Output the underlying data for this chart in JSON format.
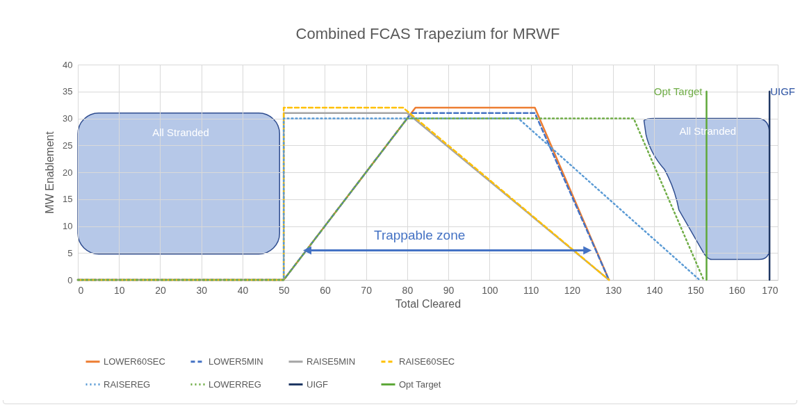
{
  "chart_data": {
    "type": "line",
    "title": "Combined FCAS Trapezium for MRWF",
    "xlabel": "Total Cleared",
    "ylabel": "MW Enablement",
    "xlim": [
      0,
      170
    ],
    "xticks": [
      0,
      10,
      20,
      30,
      40,
      50,
      60,
      70,
      80,
      90,
      100,
      110,
      120,
      130,
      140,
      150,
      160,
      170
    ],
    "ylim": [
      0,
      40
    ],
    "yticks": [
      0,
      5,
      10,
      15,
      20,
      25,
      30,
      35,
      40
    ],
    "grid": true,
    "legend": "bottom",
    "series": [
      {
        "name": "LOWER60SEC",
        "color": "#ed7d31",
        "line_style": "solid",
        "x": [
          0,
          50,
          82,
          111,
          129
        ],
        "values": [
          0,
          0,
          32,
          32,
          0
        ]
      },
      {
        "name": "LOWER5MIN",
        "color": "#4472c4",
        "line_style": "dashed",
        "x": [
          0,
          50,
          81,
          111,
          129
        ],
        "values": [
          0,
          0,
          31,
          31,
          0
        ]
      },
      {
        "name": "RAISE5MIN",
        "color": "#a5a5a5",
        "line_style": "solid",
        "x": [
          0,
          50,
          50,
          80,
          129
        ],
        "values": [
          0,
          0,
          31,
          31,
          0
        ]
      },
      {
        "name": "RAISE60SEC",
        "color": "#ffc000",
        "line_style": "dashed",
        "x": [
          0,
          50,
          50,
          79,
          129
        ],
        "values": [
          0,
          0,
          32,
          32,
          0
        ]
      },
      {
        "name": "RAISEREG",
        "color": "#5b9bd5",
        "line_style": "dotted",
        "x": [
          0,
          50,
          50,
          107,
          151
        ],
        "values": [
          0,
          0,
          30,
          30,
          0
        ]
      },
      {
        "name": "LOWERREG",
        "color": "#70ad47",
        "line_style": "dotted",
        "x": [
          0,
          50,
          80,
          135,
          152
        ],
        "values": [
          0,
          0,
          30,
          30,
          0
        ]
      },
      {
        "name": "UIGF",
        "color": "#203864",
        "line_style": "solid",
        "x": [
          168,
          168
        ],
        "values": [
          0,
          35
        ]
      },
      {
        "name": "Opt Target",
        "color": "#5fa83a",
        "line_style": "solid",
        "x": [
          152.7,
          152.7
        ],
        "values": [
          0,
          35
        ]
      }
    ],
    "annotations": [
      "All Stranded",
      "All Stranded",
      "Trappable zone",
      {
        "text": "Opt Target",
        "x": 152.7,
        "y": 35
      },
      {
        "text": "UIGF",
        "x": 168,
        "y": 35
      }
    ]
  }
}
